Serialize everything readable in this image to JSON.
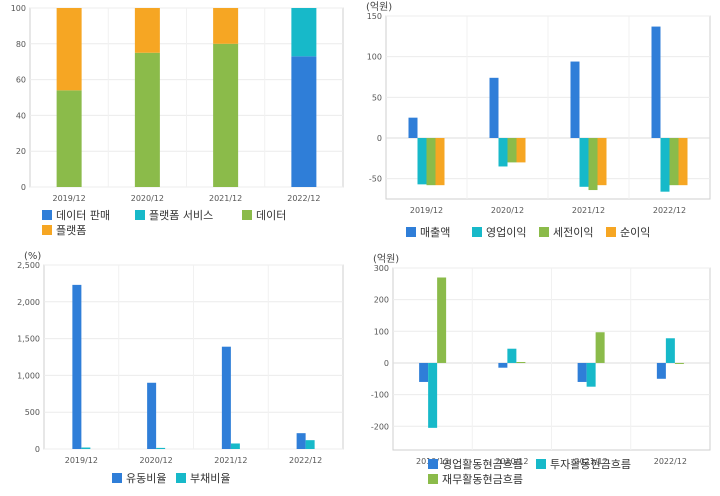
{
  "chart_data": [
    {
      "type": "bar",
      "stacked": true,
      "categories": [
        "2019/12",
        "2020/12",
        "2021/12",
        "2022/12"
      ],
      "series": [
        {
          "name": "데이터 판매",
          "color": "#2f7ed8",
          "values": [
            0,
            0,
            0,
            73
          ]
        },
        {
          "name": "플랫폼 서비스",
          "color": "#17b9c9",
          "values": [
            0,
            0,
            0,
            27
          ]
        },
        {
          "name": "데이터",
          "color": "#8bbb4a",
          "values": [
            54,
            75,
            80,
            0
          ]
        },
        {
          "name": "플랫폼",
          "color": "#f6a623",
          "values": [
            46,
            25,
            20,
            0
          ]
        }
      ],
      "y_ticks": [
        "0",
        "20",
        "40",
        "60",
        "80",
        "100"
      ],
      "ylim": [
        0,
        100
      ],
      "unit_label": "",
      "grid": true,
      "legend_position": "bottom"
    },
    {
      "type": "bar",
      "categories": [
        "2019/12",
        "2020/12",
        "2021/12",
        "2022/12"
      ],
      "series": [
        {
          "name": "매출액",
          "color": "#2f7ed8",
          "values": [
            25,
            74,
            94,
            137
          ]
        },
        {
          "name": "영업이익",
          "color": "#17b9c9",
          "values": [
            -57,
            -35,
            -60,
            -66
          ]
        },
        {
          "name": "세전이익",
          "color": "#8bbb4a",
          "values": [
            -58,
            -30,
            -64,
            -58
          ]
        },
        {
          "name": "순이익",
          "color": "#f6a623",
          "values": [
            -58,
            -30,
            -58,
            -58
          ]
        }
      ],
      "y_ticks": [
        "-50",
        "0",
        "50",
        "100",
        "150"
      ],
      "ylim": [
        -75,
        150
      ],
      "unit_label": "(억원)",
      "grid": true,
      "legend_position": "bottom"
    },
    {
      "type": "bar",
      "categories": [
        "2019/12",
        "2020/12",
        "2021/12",
        "2022/12"
      ],
      "series": [
        {
          "name": "유동비율",
          "color": "#2f7ed8",
          "values": [
            2230,
            900,
            1390,
            215
          ]
        },
        {
          "name": "부채비율",
          "color": "#17b9c9",
          "values": [
            20,
            15,
            75,
            120
          ]
        }
      ],
      "y_ticks": [
        "0",
        "500",
        "1,000",
        "1,500",
        "2,000",
        "2,500"
      ],
      "ylim": [
        0,
        2500
      ],
      "unit_label": "(%)",
      "grid": true,
      "legend_position": "bottom"
    },
    {
      "type": "bar",
      "categories": [
        "2019/12",
        "2020/12",
        "2021/12",
        "2022/12"
      ],
      "series": [
        {
          "name": "영업활동현금흐름",
          "color": "#2f7ed8",
          "values": [
            -60,
            -15,
            -60,
            -50
          ]
        },
        {
          "name": "투자활동현금흐름",
          "color": "#17b9c9",
          "values": [
            -205,
            45,
            -75,
            78
          ]
        },
        {
          "name": "재무활동현금흐름",
          "color": "#8bbb4a",
          "values": [
            270,
            3,
            97,
            0
          ]
        }
      ],
      "y_ticks": [
        "-200",
        "-100",
        "0",
        "100",
        "200",
        "300"
      ],
      "ylim": [
        -275,
        300
      ],
      "unit_label": "(억원)",
      "grid": true,
      "legend_position": "bottom"
    }
  ]
}
